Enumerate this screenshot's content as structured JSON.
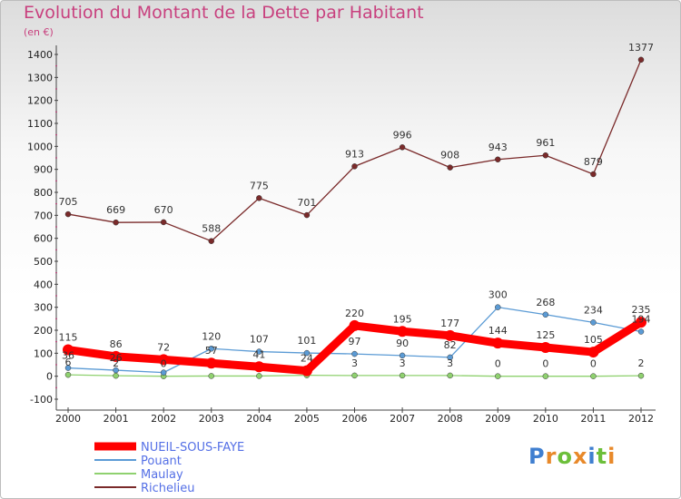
{
  "chart_data": {
    "type": "line",
    "title": "Evolution du Montant de la Dette par Habitant",
    "subtitle": "(en €)",
    "x": [
      2000,
      2001,
      2002,
      2003,
      2004,
      2005,
      2006,
      2007,
      2008,
      2009,
      2010,
      2011,
      2012
    ],
    "ylim": [
      -100,
      1400
    ],
    "yticks": [
      -100,
      0,
      100,
      200,
      300,
      400,
      500,
      600,
      700,
      800,
      900,
      1000,
      1100,
      1200,
      1300,
      1400
    ],
    "grid": false,
    "legend_position": "bottom-left",
    "series": [
      {
        "name": "NUEIL-SOUS-FAYE",
        "color": "#ff0000",
        "values": [
          115,
          86,
          72,
          57,
          41,
          24,
          220,
          195,
          177,
          144,
          125,
          105,
          235
        ],
        "labels_shown": [
          true,
          true,
          true,
          true,
          true,
          true,
          true,
          true,
          true,
          true,
          true,
          true,
          true
        ]
      },
      {
        "name": "Pouant",
        "color": "#5b9bd5",
        "values": [
          36,
          26,
          16,
          120,
          107,
          101,
          97,
          90,
          82,
          300,
          268,
          234,
          194
        ],
        "labels_shown": [
          true,
          true,
          false,
          true,
          true,
          true,
          true,
          true,
          true,
          true,
          true,
          true,
          true
        ]
      },
      {
        "name": "Maulay",
        "color": "#8fd16f",
        "values": [
          6,
          2,
          0,
          1,
          1,
          4,
          3,
          3,
          3,
          0,
          0,
          0,
          2
        ],
        "labels_shown": [
          true,
          true,
          true,
          false,
          false,
          false,
          true,
          true,
          true,
          true,
          true,
          true,
          true
        ]
      },
      {
        "name": "Richelieu",
        "color": "#7a2a2a",
        "values": [
          705,
          669,
          670,
          588,
          775,
          701,
          913,
          996,
          908,
          943,
          961,
          879,
          1377
        ],
        "labels_shown": [
          true,
          true,
          true,
          true,
          true,
          true,
          true,
          true,
          true,
          true,
          true,
          true,
          true
        ]
      }
    ]
  },
  "logo": {
    "letters": [
      "P",
      "r",
      "o",
      "x",
      "i",
      "t",
      "i"
    ],
    "colors": [
      "#3f7fd0",
      "#e8892a",
      "#6cbf3a",
      "#e8892a",
      "#3f7fd0",
      "#6cbf3a",
      "#e8892a"
    ]
  }
}
